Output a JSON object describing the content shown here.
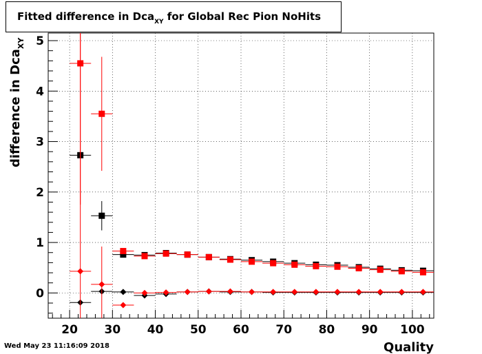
{
  "header": {
    "title_main": "Fitted difference in Dca",
    "title_sub": "XY",
    "title_tail": " for Global Rec Pion NoHits"
  },
  "footer": {
    "timestamp": "Wed May 23 11:16:09 2018"
  },
  "chart_data": {
    "type": "scatter",
    "title": "Fitted difference in Dca_XY for Global Rec Pion NoHits",
    "xlabel": "Quality",
    "ylabel": "difference in Dca",
    "ylabel_sub": "XY",
    "xlim": [
      15,
      105
    ],
    "ylim": [
      -0.5,
      5.15
    ],
    "xticks": [
      20,
      30,
      40,
      50,
      60,
      70,
      80,
      90,
      100
    ],
    "yticks": [
      0,
      1,
      2,
      3,
      4,
      5
    ],
    "grid": true,
    "legend": "none",
    "colors": {
      "black": "#000000",
      "red": "#ff0000"
    },
    "series": [
      {
        "marker": "square",
        "color": "#000000",
        "x": [
          22.5,
          27.5,
          32.5,
          37.5,
          42.5,
          47.5,
          52.5,
          57.5,
          62.5,
          67.5,
          72.5,
          77.5,
          82.5,
          87.5,
          92.5,
          97.5,
          102.5
        ],
        "y": [
          2.73,
          1.53,
          0.76,
          0.75,
          0.79,
          0.76,
          0.71,
          0.67,
          0.65,
          0.62,
          0.59,
          0.56,
          0.55,
          0.51,
          0.48,
          0.45,
          0.44
        ],
        "yerr": [
          0.06,
          0.29,
          0.02,
          0.02,
          0.02,
          0.02,
          0.02,
          0.02,
          0.02,
          0.02,
          0.02,
          0.02,
          0.02,
          0.02,
          0.02,
          0.02,
          0.02
        ]
      },
      {
        "marker": "square",
        "color": "#ff0000",
        "x": [
          22.5,
          27.5,
          32.5,
          37.5,
          42.5,
          47.5,
          52.5,
          57.5,
          62.5,
          67.5,
          72.5,
          77.5,
          82.5,
          87.5,
          92.5,
          97.5,
          102.5
        ],
        "y": [
          4.55,
          3.55,
          0.83,
          0.73,
          0.78,
          0.76,
          0.71,
          0.66,
          0.62,
          0.59,
          0.56,
          0.53,
          0.52,
          0.49,
          0.46,
          0.43,
          0.41
        ],
        "yerr": [
          2.8,
          1.13,
          0.03,
          0.02,
          0.02,
          0.02,
          0.02,
          0.02,
          0.02,
          0.02,
          0.02,
          0.02,
          0.02,
          0.02,
          0.02,
          0.02,
          0.02
        ]
      },
      {
        "marker": "diamond",
        "color": "#000000",
        "x": [
          22.5,
          27.5,
          32.5,
          37.5,
          42.5,
          47.5,
          52.5,
          57.5,
          62.5,
          67.5,
          72.5,
          77.5,
          82.5,
          87.5,
          92.5,
          97.5,
          102.5
        ],
        "y": [
          -0.19,
          0.03,
          0.02,
          -0.05,
          -0.02,
          0.02,
          0.03,
          0.02,
          0.02,
          0.01,
          0.01,
          0.01,
          0.01,
          0.01,
          0.01,
          0.01,
          0.01
        ],
        "yerr": [
          0.05,
          0.05,
          0.01,
          0.01,
          0.01,
          0.01,
          0.01,
          0.01,
          0.01,
          0.01,
          0.01,
          0.01,
          0.01,
          0.01,
          0.01,
          0.01,
          0.01
        ]
      },
      {
        "marker": "diamond",
        "color": "#ff0000",
        "x": [
          22.5,
          27.5,
          32.5,
          37.5,
          42.5,
          47.5,
          52.5,
          57.5,
          62.5,
          67.5,
          72.5,
          77.5,
          82.5,
          87.5,
          92.5,
          97.5,
          102.5
        ],
        "y": [
          0.43,
          0.17,
          -0.24,
          0.0,
          0.01,
          0.02,
          0.03,
          0.03,
          0.02,
          0.02,
          0.02,
          0.02,
          0.02,
          0.02,
          0.02,
          0.02,
          0.02
        ],
        "yerr": [
          4.9,
          0.75,
          0.03,
          0.01,
          0.01,
          0.01,
          0.01,
          0.01,
          0.01,
          0.01,
          0.01,
          0.01,
          0.01,
          0.01,
          0.01,
          0.01,
          0.01
        ]
      }
    ]
  }
}
